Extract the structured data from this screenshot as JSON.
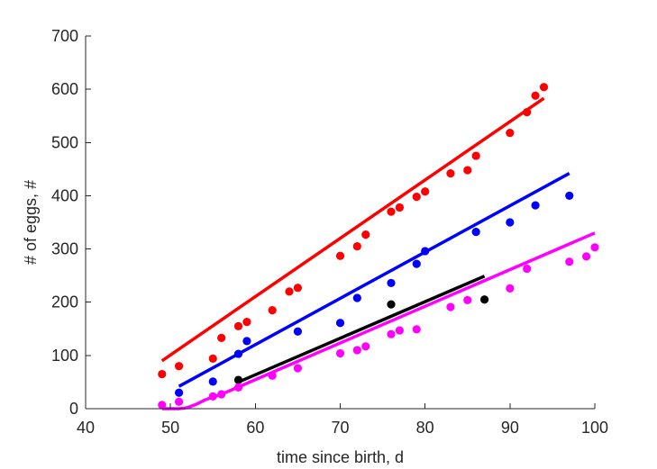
{
  "chart_data": {
    "type": "scatter",
    "title": "",
    "xlabel": "time since birth, d",
    "ylabel": "# of eggs, #",
    "xlim": [
      40,
      100
    ],
    "ylim": [
      0,
      700
    ],
    "xticks": [
      40,
      50,
      60,
      70,
      80,
      90,
      100
    ],
    "yticks": [
      0,
      100,
      200,
      300,
      400,
      500,
      600,
      700
    ],
    "grid": false,
    "legend": "none",
    "series": [
      {
        "color": "#ff0000",
        "points": {
          "x": [
            49,
            51,
            55,
            56,
            58,
            59,
            62,
            64,
            65,
            70,
            72,
            73,
            76,
            77,
            79,
            80,
            83,
            85,
            86,
            90,
            92,
            93,
            94
          ],
          "y": [
            65,
            80,
            94,
            133,
            155,
            163,
            185,
            220,
            227,
            287,
            305,
            327,
            370,
            378,
            398,
            408,
            442,
            448,
            475,
            518,
            557,
            588,
            604
          ]
        },
        "fit": {
          "x": [
            49,
            94
          ],
          "y": [
            90,
            583
          ]
        }
      },
      {
        "color": "#0000ff",
        "points": {
          "x": [
            51,
            55,
            58,
            59,
            65,
            70,
            72,
            76,
            79,
            80,
            86,
            90,
            93,
            97
          ],
          "y": [
            30,
            51,
            103,
            127,
            145,
            161,
            208,
            236,
            272,
            296,
            332,
            350,
            382,
            400
          ]
        },
        "fit": {
          "x": [
            51,
            97
          ],
          "y": [
            42,
            442
          ]
        }
      },
      {
        "color": "#000000",
        "points": {
          "x": [
            58,
            76,
            87
          ],
          "y": [
            54,
            196,
            205
          ]
        },
        "fit": {
          "x": [
            58,
            87
          ],
          "y": [
            50,
            249
          ]
        }
      },
      {
        "color": "#ff00ff",
        "points": {
          "x": [
            49,
            51,
            55,
            56,
            58,
            62,
            65,
            70,
            72,
            73,
            76,
            77,
            79,
            83,
            85,
            90,
            92,
            97,
            99,
            100
          ],
          "y": [
            7,
            13,
            23,
            27,
            40,
            62,
            76,
            104,
            110,
            117,
            140,
            147,
            149,
            191,
            204,
            226,
            263,
            276,
            286,
            303
          ]
        },
        "fit": {
          "x": [
            49,
            50,
            51,
            52,
            53,
            54,
            55,
            56,
            100
          ],
          "y": [
            0,
            0,
            0,
            2,
            8,
            16,
            22,
            27,
            330
          ]
        }
      }
    ]
  }
}
